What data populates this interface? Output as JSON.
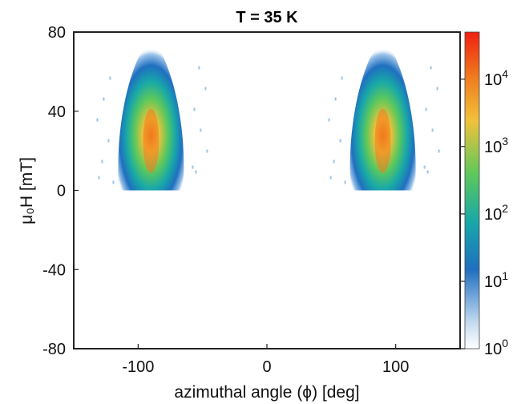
{
  "chart_data": {
    "type": "heatmap",
    "title": "T = 35 K",
    "xlabel": "azimuthal angle (ϕ) [deg]",
    "ylabel": "μ₀H [mT]",
    "xlim": [
      -150,
      150
    ],
    "ylim": [
      -80,
      80
    ],
    "x_ticks": [
      {
        "value": -100,
        "label": "-100"
      },
      {
        "value": 0,
        "label": "0"
      },
      {
        "value": 100,
        "label": "100"
      }
    ],
    "y_ticks": [
      {
        "value": -80,
        "label": "-80"
      },
      {
        "value": -40,
        "label": "-40"
      },
      {
        "value": 0,
        "label": "0"
      },
      {
        "value": 40,
        "label": "40"
      },
      {
        "value": 80,
        "label": "80"
      }
    ],
    "colorbar": {
      "scale": "log",
      "range": [
        1,
        50000
      ],
      "ticks": [
        {
          "value": 1,
          "label": "10",
          "exp": "0"
        },
        {
          "value": 10,
          "label": "10",
          "exp": "1"
        },
        {
          "value": 100,
          "label": "10",
          "exp": "2"
        },
        {
          "value": 1000,
          "label": "10",
          "exp": "3"
        },
        {
          "value": 10000,
          "label": "10",
          "exp": "4"
        }
      ],
      "colormap": [
        "#ffffff",
        "#c6dcf0",
        "#1f6fc0",
        "#18a8a8",
        "#5cc85c",
        "#f0c23a",
        "#f07a1e",
        "#f02010"
      ]
    },
    "lobes": [
      {
        "center_x": -90,
        "peak_y": 25,
        "y_range": [
          0,
          75
        ],
        "peak_counts": 40000
      },
      {
        "center_x": 90,
        "peak_y": 25,
        "y_range": [
          0,
          75
        ],
        "peak_counts": 40000
      }
    ],
    "grid": false
  }
}
